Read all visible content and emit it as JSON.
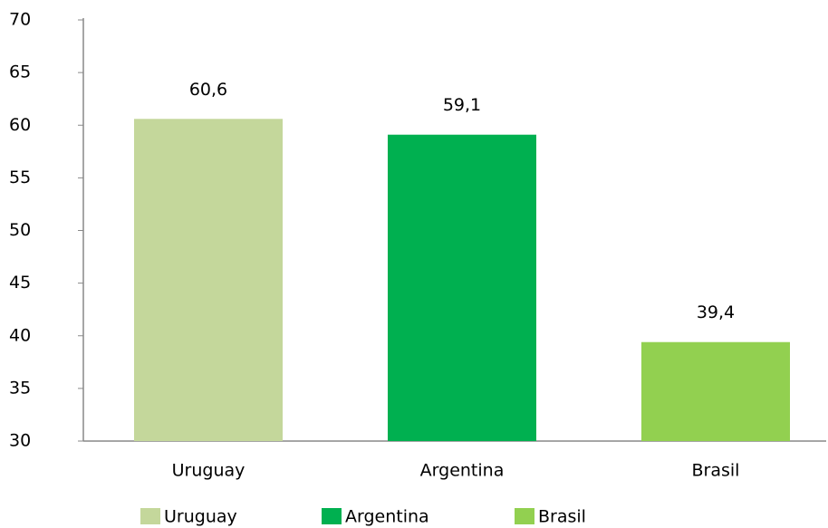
{
  "chart_data": {
    "type": "bar",
    "categories": [
      "Uruguay",
      "Argentina",
      "Brasil"
    ],
    "values": [
      60.6,
      59.1,
      39.4
    ],
    "value_labels": [
      "60,6",
      "59,1",
      "39,4"
    ],
    "colors": [
      "#c4d79b",
      "#00b050",
      "#92d050"
    ],
    "ylim": [
      30,
      70
    ],
    "yticks": [
      30,
      35,
      40,
      45,
      50,
      55,
      60,
      65,
      70
    ],
    "grid": false,
    "legend": "bottom"
  }
}
